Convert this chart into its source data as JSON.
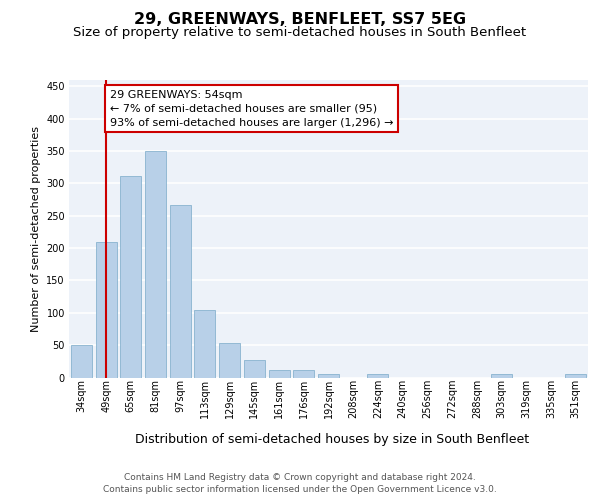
{
  "title": "29, GREENWAYS, BENFLEET, SS7 5EG",
  "subtitle": "Size of property relative to semi-detached houses in South Benfleet",
  "xlabel": "Distribution of semi-detached houses by size in South Benfleet",
  "ylabel": "Number of semi-detached properties",
  "bar_values": [
    50,
    210,
    312,
    350,
    267,
    104,
    54,
    27,
    12,
    11,
    5,
    0,
    5,
    0,
    0,
    0,
    0,
    5,
    0,
    0,
    5
  ],
  "categories": [
    "34sqm",
    "49sqm",
    "65sqm",
    "81sqm",
    "97sqm",
    "113sqm",
    "129sqm",
    "145sqm",
    "161sqm",
    "176sqm",
    "192sqm",
    "208sqm",
    "224sqm",
    "240sqm",
    "256sqm",
    "272sqm",
    "288sqm",
    "303sqm",
    "319sqm",
    "335sqm",
    "351sqm"
  ],
  "bar_color": "#b8d0e8",
  "bar_edge_color": "#7aaac8",
  "vline_color": "#cc0000",
  "vline_x": 1,
  "annotation_line1": "29 GREENWAYS: 54sqm",
  "annotation_line2": "← 7% of semi-detached houses are smaller (95)",
  "annotation_line3": "93% of semi-detached houses are larger (1,296) →",
  "ylim": [
    0,
    460
  ],
  "yticks": [
    0,
    50,
    100,
    150,
    200,
    250,
    300,
    350,
    400,
    450
  ],
  "footer1": "Contains HM Land Registry data © Crown copyright and database right 2024.",
  "footer2": "Contains public sector information licensed under the Open Government Licence v3.0.",
  "bg_color": "#edf2f9",
  "grid_color": "#ffffff",
  "title_fontsize": 11.5,
  "subtitle_fontsize": 9.5,
  "xlabel_fontsize": 9,
  "ylabel_fontsize": 8,
  "tick_fontsize": 7,
  "annotation_fontsize": 8,
  "footer_fontsize": 6.5
}
